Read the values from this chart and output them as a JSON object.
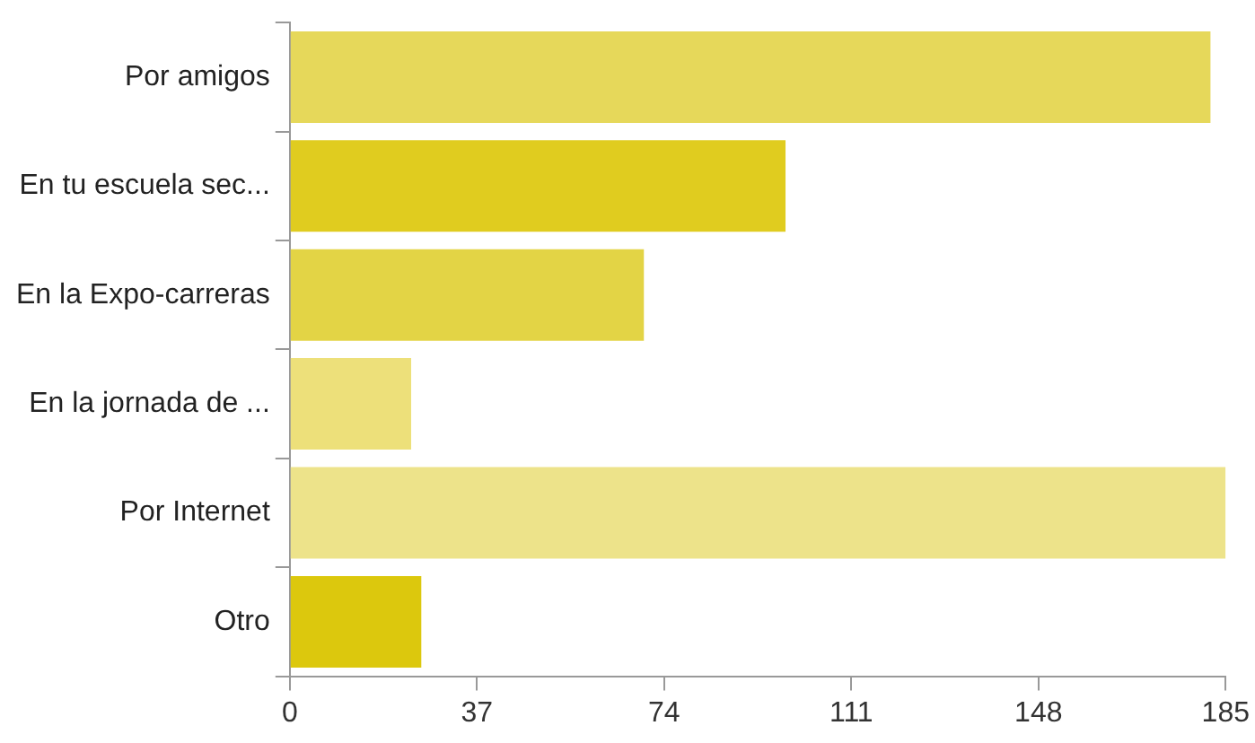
{
  "chart_data": {
    "type": "bar",
    "orientation": "horizontal",
    "categories": [
      "Por amigos",
      "En tu escuela sec...",
      "En la Expo-carreras",
      "En la jornada de ...",
      "Por Internet",
      "Otro"
    ],
    "values": [
      182,
      98,
      70,
      24,
      185,
      26
    ],
    "colors": [
      "#e6d85a",
      "#e0cc1f",
      "#e3d445",
      "#ede07a",
      "#ede38a",
      "#dcc80d"
    ],
    "xlim": [
      0,
      185
    ],
    "xticks": [
      0,
      37,
      74,
      111,
      148,
      185
    ],
    "grid": false,
    "legend": false
  }
}
